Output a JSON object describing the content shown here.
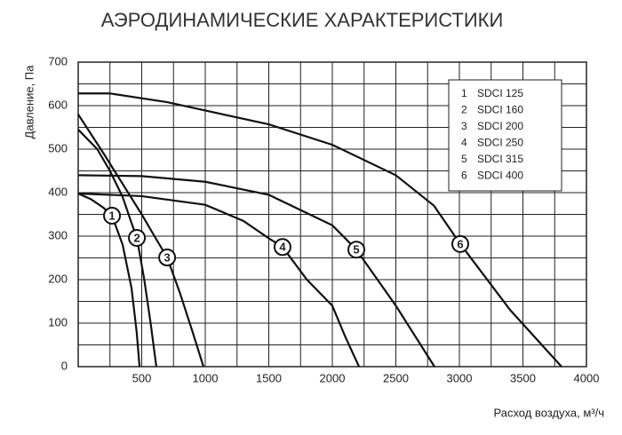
{
  "chart_data": {
    "type": "line",
    "title": "АЭРОДИНАМИЧЕСКИЕ ХАРАКТЕРИСТИКИ",
    "y_label": "Давление, Па",
    "x_label": "Расход воздуха, м³/ч",
    "xlim": [
      0,
      4000
    ],
    "xticks": [
      500,
      1000,
      1500,
      2000,
      2500,
      3000,
      3500,
      4000
    ],
    "ylim": [
      0,
      700
    ],
    "yticks": [
      0,
      100,
      200,
      300,
      400,
      500,
      600,
      700
    ],
    "grid": true,
    "legend": "upper-right",
    "series": [
      {
        "label": "1",
        "name": "SDCI 125",
        "color": "#111111",
        "x": [
          0,
          100,
          200,
          266,
          350,
          420,
          460,
          483
        ],
        "values": [
          398,
          385,
          365,
          347,
          280,
          180,
          80,
          0
        ]
      },
      {
        "label": "2",
        "name": "SDCI 160",
        "color": "#111111",
        "x": [
          0,
          150,
          250,
          350,
          420,
          462,
          520,
          570,
          615
        ],
        "values": [
          545,
          500,
          450,
          390,
          330,
          296,
          200,
          100,
          0
        ]
      },
      {
        "label": "3",
        "name": "SDCI 200",
        "color": "#111111",
        "x": [
          0,
          200,
          350,
          500,
          600,
          700,
          800,
          900,
          986
        ],
        "values": [
          580,
          490,
          420,
          350,
          300,
          251,
          170,
          80,
          0
        ]
      },
      {
        "label": "4",
        "name": "SDCI 250",
        "color": "#111111",
        "x": [
          0,
          500,
          1000,
          1300,
          1500,
          1608,
          1800,
          2000,
          2100,
          2210
        ],
        "values": [
          398,
          392,
          372,
          335,
          295,
          275,
          200,
          140,
          70,
          0
        ]
      },
      {
        "label": "5",
        "name": "SDCI 315",
        "color": "#111111",
        "x": [
          0,
          500,
          1000,
          1500,
          2000,
          2189,
          2500,
          2804
        ],
        "values": [
          440,
          438,
          425,
          395,
          325,
          269,
          140,
          0
        ]
      },
      {
        "label": "6",
        "name": "SDCI 400",
        "color": "#111111",
        "x": [
          0,
          250,
          700,
          1500,
          2000,
          2500,
          2800,
          3007,
          3400,
          3804
        ],
        "values": [
          628,
          628,
          608,
          557,
          510,
          440,
          370,
          282,
          130,
          0
        ]
      }
    ]
  }
}
